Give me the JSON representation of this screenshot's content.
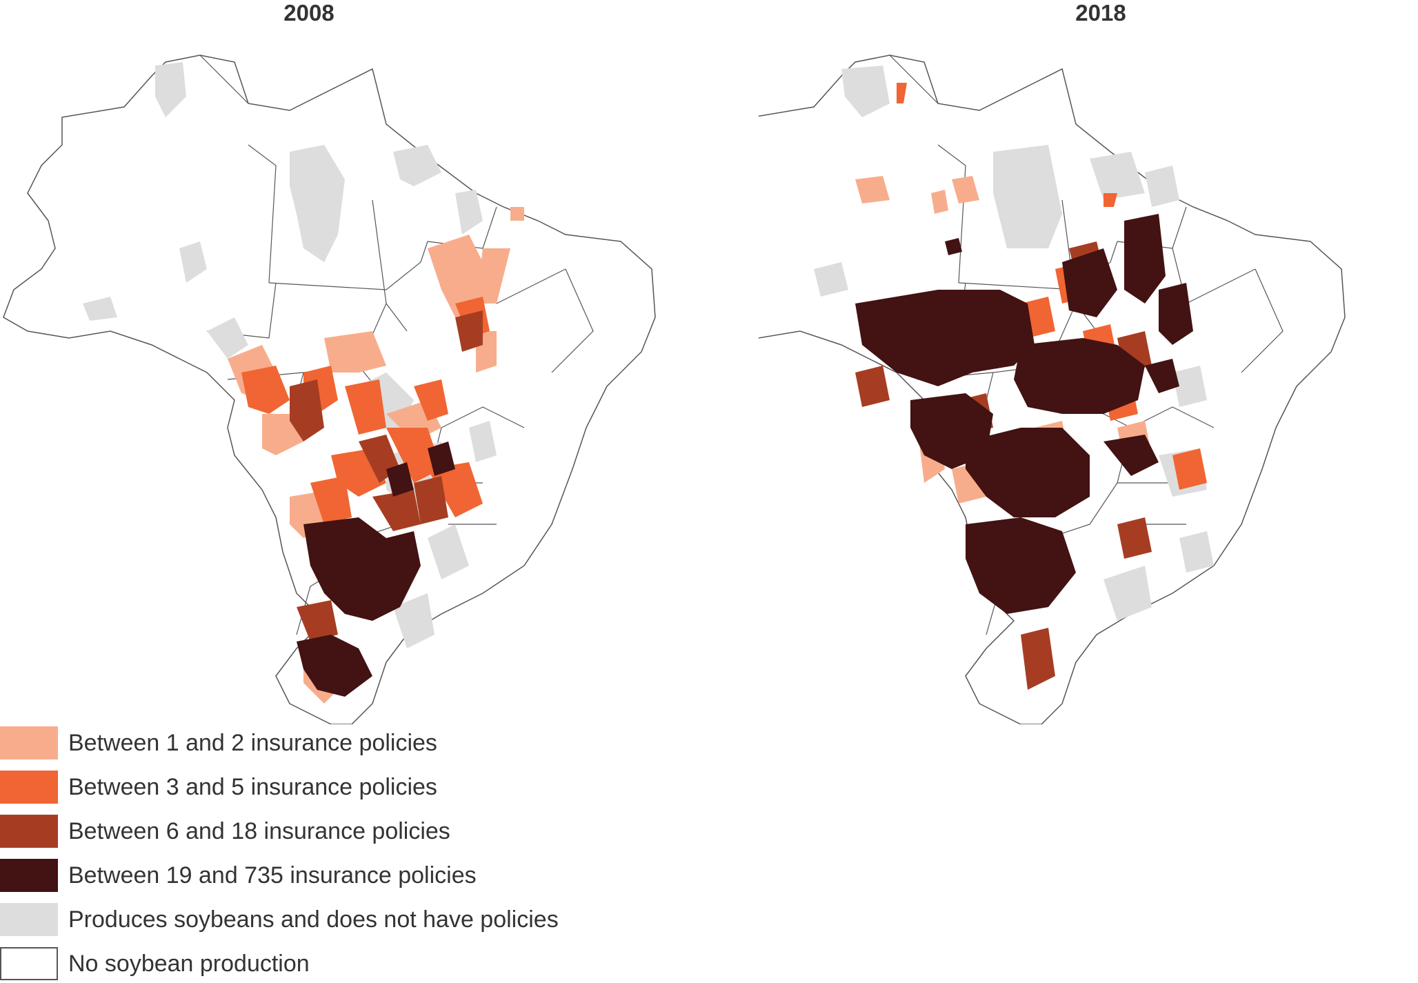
{
  "maps": [
    {
      "title": "2008",
      "regions": [
        {
          "class": "produces_no_policies"
        },
        {
          "class": "policies_1_2"
        },
        {
          "class": "policies_3_5"
        },
        {
          "class": "policies_6_18"
        },
        {
          "class": "policies_19_735"
        }
      ]
    },
    {
      "title": "2018",
      "regions": [
        {
          "class": "produces_no_policies"
        },
        {
          "class": "policies_1_2"
        },
        {
          "class": "policies_3_5"
        },
        {
          "class": "policies_6_18"
        },
        {
          "class": "policies_19_735"
        }
      ]
    }
  ],
  "legend": {
    "items": [
      {
        "label": "Between 1 and 2 insurance policies",
        "color": "#F7AD8C",
        "key": "policies_1_2"
      },
      {
        "label": "Between 3 and 5 insurance policies",
        "color": "#F06533",
        "key": "policies_3_5"
      },
      {
        "label": "Between 6 and 18 insurance policies",
        "color": "#A63D22",
        "key": "policies_6_18"
      },
      {
        "label": "Between 19 and 735 insurance policies",
        "color": "#431212",
        "key": "policies_19_735"
      },
      {
        "label": "Produces soybeans and does not have policies",
        "color": "#DDDDDD",
        "key": "produces_no_policies"
      },
      {
        "label": "No soybean production",
        "color": "#FFFFFF",
        "key": "no_production"
      }
    ]
  },
  "colors": {
    "border": "#555555",
    "background": "#FFFFFF"
  }
}
